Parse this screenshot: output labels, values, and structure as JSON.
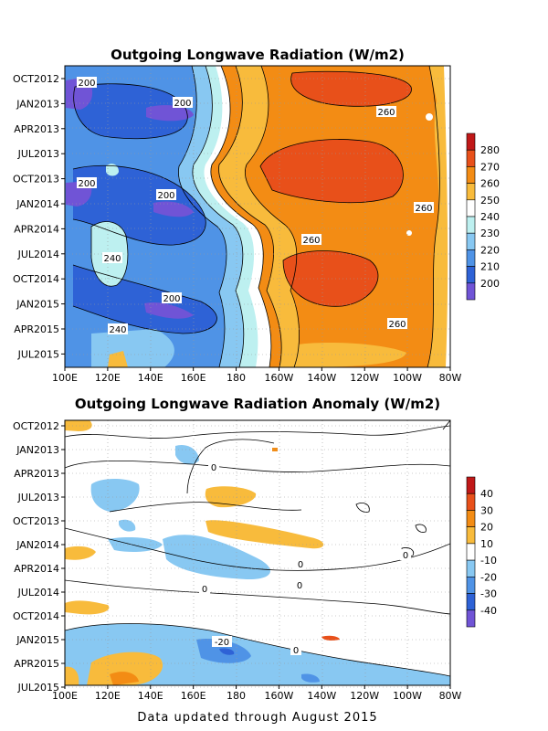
{
  "footer": "Data updated through August 2015",
  "chart_data": [
    {
      "type": "heatmap",
      "title": "Outgoing Longwave Radiation (W/m2)",
      "x_ticks": [
        "100E",
        "120E",
        "140E",
        "160E",
        "180",
        "160W",
        "140W",
        "120W",
        "100W",
        "80W"
      ],
      "y_ticks": [
        "OCT2012",
        "JAN2013",
        "APR2013",
        "JUL2013",
        "OCT2013",
        "JAN2014",
        "APR2014",
        "JUL2014",
        "OCT2014",
        "JAN2015",
        "APR2015",
        "JUL2015"
      ],
      "colorbar": {
        "levels": [
          280,
          270,
          260,
          250,
          240,
          230,
          220,
          210,
          200
        ],
        "colors": [
          "#c01818",
          "#e8501a",
          "#f38c14",
          "#f8bb3c",
          "#ffffff",
          "#bdf0f0",
          "#88c8f2",
          "#4f93e6",
          "#2e62d6",
          "#7054d6"
        ]
      },
      "contour_labels": [
        "200",
        "200",
        "200",
        "200",
        "200",
        "240",
        "240",
        "260",
        "260",
        "260",
        "260"
      ],
      "grid": true
    },
    {
      "type": "heatmap",
      "title": "Outgoing Longwave Radiation Anomaly (W/m2)",
      "x_ticks": [
        "100E",
        "120E",
        "140E",
        "160E",
        "180",
        "160W",
        "140W",
        "120W",
        "100W",
        "80W"
      ],
      "y_ticks": [
        "OCT2012",
        "JAN2013",
        "APR2013",
        "JUL2013",
        "OCT2013",
        "JAN2014",
        "APR2014",
        "JUL2014",
        "OCT2014",
        "JAN2015",
        "APR2015",
        "JUL2015"
      ],
      "colorbar": {
        "levels": [
          40,
          30,
          20,
          10,
          -10,
          -20,
          -30,
          -40
        ],
        "colors": [
          "#c01818",
          "#e8501a",
          "#f38c14",
          "#f8bb3c",
          "#ffffff",
          "#88c8f2",
          "#4f93e6",
          "#2e62d6",
          "#7054d6"
        ]
      },
      "contour_labels": [
        "0",
        "0",
        "0",
        "0",
        "0",
        "0",
        "-20"
      ],
      "grid": true
    }
  ]
}
